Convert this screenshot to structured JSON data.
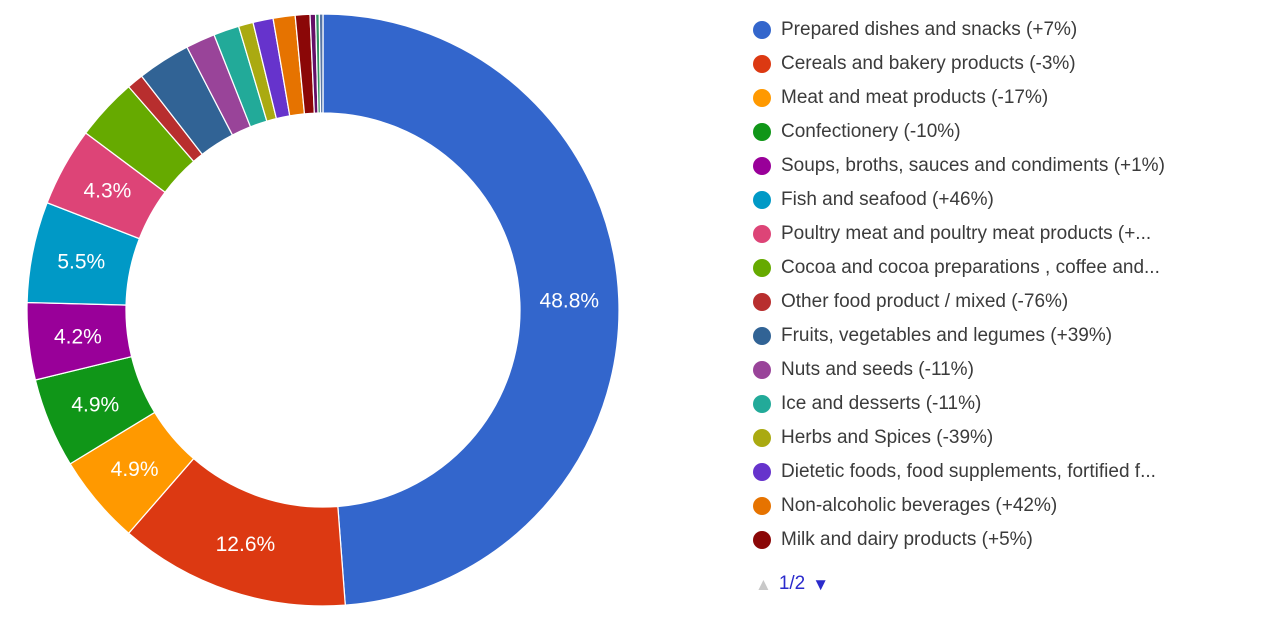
{
  "page": {
    "background_color": "#ffffff"
  },
  "chart_data": {
    "type": "pie",
    "subtype": "donut",
    "title": "",
    "unit": "%",
    "start_angle_deg": 0,
    "direction": "clockwise",
    "inner_radius_ratio": 0.665,
    "data_label_color": "#ffffff",
    "slice_border_color": "#ffffff",
    "legend_position": "right",
    "label_threshold_pct": 4.0,
    "slices": [
      {
        "name": "Prepared dishes and snacks",
        "legend_text": "Prepared dishes and snacks (+7%)",
        "value": 48.8,
        "data_label": "48.8%",
        "color": "#3366CC",
        "legend_page": 1
      },
      {
        "name": "Cereals and bakery products",
        "legend_text": "Cereals and bakery products (-3%)",
        "value": 12.6,
        "data_label": "12.6%",
        "color": "#DC3912",
        "legend_page": 1
      },
      {
        "name": "Meat and meat products",
        "legend_text": "Meat and meat products (-17%)",
        "value": 4.9,
        "data_label": "4.9%",
        "color": "#FF9900",
        "legend_page": 1
      },
      {
        "name": "Confectionery",
        "legend_text": "Confectionery (-10%)",
        "value": 4.9,
        "data_label": "4.9%",
        "color": "#109618",
        "legend_page": 1
      },
      {
        "name": "Soups, broths, sauces and condiments",
        "legend_text": "Soups, broths, sauces and condiments (+1%)",
        "value": 4.2,
        "data_label": "4.2%",
        "color": "#990099",
        "legend_page": 1
      },
      {
        "name": "Fish and seafood",
        "legend_text": "Fish and seafood (+46%)",
        "value": 5.5,
        "data_label": "5.5%",
        "color": "#0099C6",
        "legend_page": 1
      },
      {
        "name": "Poultry meat and poultry meat products",
        "legend_text": "Poultry meat and poultry meat products (+...",
        "value": 4.3,
        "data_label": "4.3%",
        "color": "#DD4477",
        "legend_page": 1
      },
      {
        "name": "Cocoa and cocoa preparations , coffee and tea",
        "legend_text": "Cocoa and cocoa preparations , coffee and...",
        "value": 3.4,
        "data_label": null,
        "color": "#66AA00",
        "legend_page": 1
      },
      {
        "name": "Other food product / mixed",
        "legend_text": "Other food product / mixed (-76%)",
        "value": 0.9,
        "data_label": null,
        "color": "#B82E2E",
        "legend_page": 1
      },
      {
        "name": "Fruits, vegetables and legumes",
        "legend_text": "Fruits, vegetables and legumes (+39%)",
        "value": 2.9,
        "data_label": null,
        "color": "#316395",
        "legend_page": 1
      },
      {
        "name": "Nuts and seeds",
        "legend_text": "Nuts and seeds (-11%)",
        "value": 1.6,
        "data_label": null,
        "color": "#994499",
        "legend_page": 1
      },
      {
        "name": "Ice and desserts",
        "legend_text": "Ice and desserts (-11%)",
        "value": 1.4,
        "data_label": null,
        "color": "#22AA99",
        "legend_page": 1
      },
      {
        "name": "Herbs and Spices",
        "legend_text": "Herbs and Spices (-39%)",
        "value": 0.8,
        "data_label": null,
        "color": "#AAAA11",
        "legend_page": 1
      },
      {
        "name": "Dietetic foods, food supplements, fortified foods",
        "legend_text": "Dietetic foods, food supplements, fortified f...",
        "value": 1.1,
        "data_label": null,
        "color": "#6633CC",
        "legend_page": 1
      },
      {
        "name": "Non-alcoholic beverages",
        "legend_text": "Non-alcoholic beverages (+42%)",
        "value": 1.2,
        "data_label": null,
        "color": "#E67300",
        "legend_page": 1
      },
      {
        "name": "Milk and dairy products",
        "legend_text": "Milk and dairy products (+5%)",
        "value": 0.8,
        "data_label": null,
        "color": "#8B0707",
        "legend_page": 1
      },
      {
        "name": "",
        "legend_text": null,
        "value": 0.3,
        "data_label": null,
        "color": "#651067",
        "legend_page": 2
      },
      {
        "name": "",
        "legend_text": null,
        "value": 0.2,
        "data_label": null,
        "color": "#329262",
        "legend_page": 2
      },
      {
        "name": "",
        "legend_text": null,
        "value": 0.2,
        "data_label": null,
        "color": "#5574A6",
        "legend_page": 2
      }
    ]
  },
  "legend": {
    "text_color": "#3b3b3b",
    "visible_items": 16,
    "pagination": {
      "up_symbol": "▲",
      "down_symbol": "▼",
      "page_indicator": "1/2",
      "up_enabled": false,
      "down_enabled": true,
      "active_color": "#2B2BCC",
      "indicator_color": "#2B2BCC",
      "disabled_color": "#C9C9C9"
    }
  }
}
